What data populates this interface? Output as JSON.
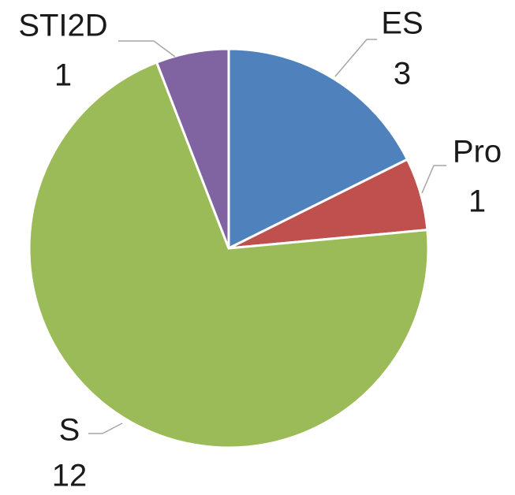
{
  "chart_data": {
    "type": "pie",
    "categories": [
      "ES",
      "Pro",
      "S",
      "STI2D"
    ],
    "values": [
      3,
      1,
      12,
      1
    ],
    "colors": [
      "#4f81bd",
      "#c0504d",
      "#9bbb59",
      "#8064a2"
    ]
  }
}
